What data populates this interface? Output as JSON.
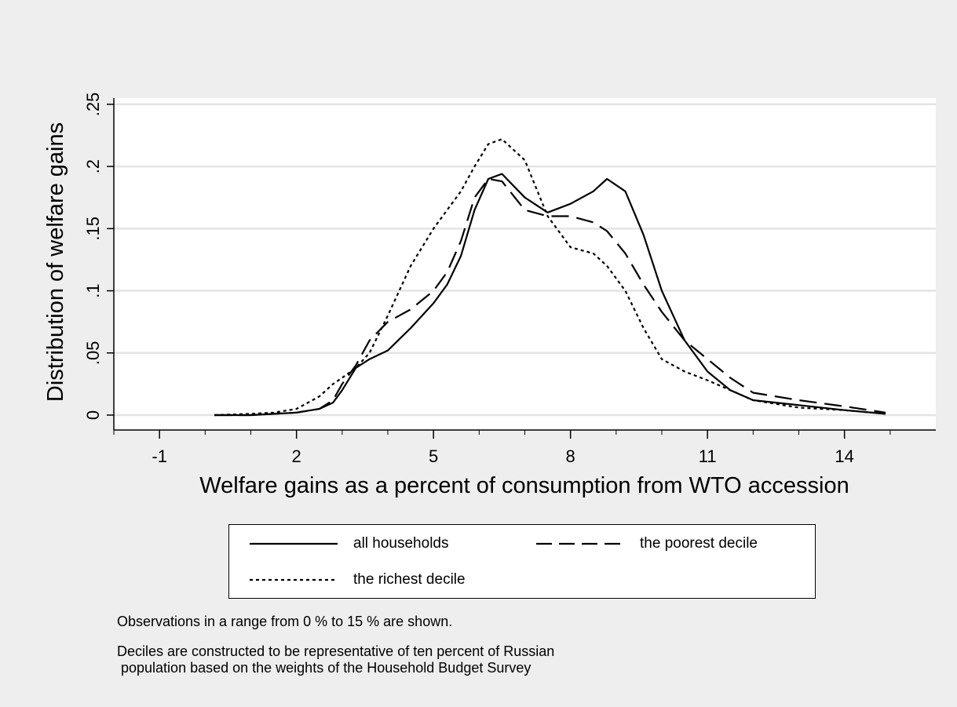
{
  "chart_data": {
    "type": "line",
    "title": "",
    "xlabel": "Welfare gains as a percent of consumption from WTO accession",
    "ylabel": "Distribution of welfare gains",
    "xlim": [
      -2,
      16
    ],
    "ylim": [
      -0.012,
      0.255
    ],
    "xticks": [
      -1,
      2,
      5,
      8,
      11,
      14
    ],
    "xtick_labels": [
      "-1",
      "2",
      "5",
      "8",
      "11",
      "14"
    ],
    "yticks": [
      0,
      0.05,
      0.1,
      0.15,
      0.2,
      0.25
    ],
    "ytick_labels": [
      "0",
      ".05",
      ".1",
      ".15",
      ".2",
      ".25"
    ],
    "grid": "horizontal",
    "legend_position": "bottom",
    "series": [
      {
        "name": "all households",
        "style": "solid",
        "x": [
          0.2,
          1,
          1.5,
          2,
          2.5,
          2.8,
          3,
          3.3,
          3.6,
          4,
          4.5,
          5,
          5.3,
          5.6,
          5.9,
          6.2,
          6.5,
          7,
          7.5,
          8,
          8.5,
          8.8,
          9.2,
          9.6,
          10,
          10.5,
          11,
          11.5,
          12,
          13,
          14,
          14.9
        ],
        "y": [
          0,
          0,
          0.001,
          0.002,
          0.005,
          0.01,
          0.02,
          0.038,
          0.045,
          0.052,
          0.07,
          0.09,
          0.105,
          0.128,
          0.165,
          0.19,
          0.194,
          0.175,
          0.163,
          0.17,
          0.18,
          0.19,
          0.18,
          0.145,
          0.1,
          0.06,
          0.035,
          0.02,
          0.012,
          0.008,
          0.004,
          0.001
        ]
      },
      {
        "name": "the poorest decile",
        "style": "dash",
        "x": [
          0.2,
          1,
          1.5,
          2,
          2.5,
          2.8,
          3,
          3.3,
          3.6,
          4,
          4.5,
          5,
          5.3,
          5.6,
          5.9,
          6.2,
          6.5,
          7,
          7.5,
          8,
          8.5,
          8.8,
          9.2,
          9.6,
          10,
          10.5,
          11,
          11.5,
          12,
          13,
          14,
          14.9
        ],
        "y": [
          0,
          0,
          0.001,
          0.002,
          0.005,
          0.012,
          0.025,
          0.04,
          0.06,
          0.075,
          0.085,
          0.1,
          0.115,
          0.14,
          0.175,
          0.19,
          0.188,
          0.165,
          0.16,
          0.16,
          0.155,
          0.148,
          0.13,
          0.105,
          0.083,
          0.06,
          0.045,
          0.03,
          0.018,
          0.012,
          0.007,
          0.002
        ]
      },
      {
        "name": "the richest decile",
        "style": "dot",
        "x": [
          0.2,
          1,
          1.5,
          2,
          2.5,
          2.8,
          3,
          3.3,
          3.6,
          4,
          4.5,
          5,
          5.3,
          5.6,
          5.9,
          6.2,
          6.5,
          7,
          7.5,
          8,
          8.5,
          8.8,
          9.2,
          9.6,
          10,
          10.5,
          11,
          11.5,
          12,
          13,
          14,
          14.9
        ],
        "y": [
          0,
          0.001,
          0.002,
          0.005,
          0.015,
          0.025,
          0.03,
          0.038,
          0.05,
          0.08,
          0.12,
          0.15,
          0.165,
          0.18,
          0.2,
          0.218,
          0.222,
          0.205,
          0.16,
          0.135,
          0.13,
          0.12,
          0.1,
          0.07,
          0.045,
          0.035,
          0.028,
          0.02,
          0.012,
          0.006,
          0.004,
          0.001
        ]
      }
    ]
  },
  "legend": {
    "items": [
      {
        "label": "all households",
        "style": "solid"
      },
      {
        "label": "the poorest decile",
        "style": "dash"
      },
      {
        "label": "the richest decile",
        "style": "dot"
      }
    ]
  },
  "notes": {
    "line1": "Observations in a range from 0 % to 15 % are shown.",
    "line2": "Deciles are constructed to be representative of ten percent of Russian",
    "line3": " population based on the weights of the Household Budget Survey"
  },
  "colors": {
    "page_background": "#eeeeee",
    "plot_background": "#ffffff",
    "gridline": "#e4e4e4",
    "line": "#000000"
  }
}
